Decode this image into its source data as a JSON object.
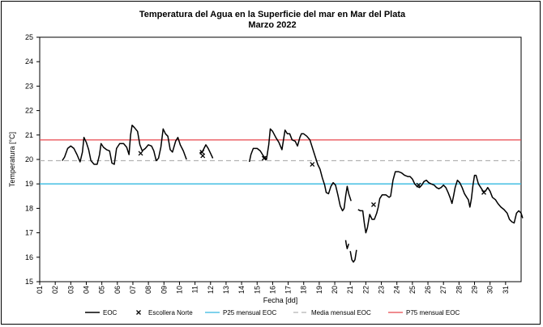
{
  "chart_data": {
    "type": "line",
    "title": "Temperatura del Agua en la Superficie del mar en Mar del Plata",
    "subtitle": "Marzo 2022",
    "xlabel": "Fecha [dd]",
    "ylabel": "Temperatura [°C]",
    "ylim": [
      15,
      25
    ],
    "xlim": [
      1,
      32
    ],
    "yticks": [
      "15",
      "16",
      "17",
      "18",
      "19",
      "20",
      "21",
      "22",
      "23",
      "24",
      "25"
    ],
    "xticks": [
      "01",
      "02",
      "03",
      "04",
      "05",
      "06",
      "07",
      "08",
      "09",
      "10",
      "11",
      "12",
      "13",
      "14",
      "15",
      "16",
      "17",
      "18",
      "19",
      "20",
      "21",
      "22",
      "23",
      "24",
      "25",
      "26",
      "27",
      "28",
      "29",
      "30",
      "31"
    ],
    "grid": false,
    "legend_position": "bottom",
    "legend": [
      "EOC",
      "Escollera Norte",
      "P25 mensual EOC",
      "Media mensual EOC",
      "P75 mensual EOC"
    ],
    "colors": {
      "eoc": "#000000",
      "escollera": "#000000",
      "p25": "#33b8e0",
      "media": "#b3b3b3",
      "p75": "#e8474c"
    },
    "series": [
      {
        "name": "EOC",
        "segments": [
          [
            [
              2.45,
              19.95
            ],
            [
              2.6,
              20.1
            ],
            [
              2.8,
              20.45
            ],
            [
              3.0,
              20.55
            ],
            [
              3.2,
              20.45
            ],
            [
              3.4,
              20.2
            ],
            [
              3.6,
              19.9
            ],
            [
              3.75,
              20.3
            ],
            [
              3.85,
              20.9
            ],
            [
              4.0,
              20.7
            ],
            [
              4.15,
              20.4
            ],
            [
              4.3,
              19.95
            ],
            [
              4.5,
              19.8
            ],
            [
              4.7,
              19.8
            ],
            [
              4.85,
              20.2
            ],
            [
              4.95,
              20.65
            ],
            [
              5.1,
              20.5
            ],
            [
              5.3,
              20.4
            ],
            [
              5.5,
              20.35
            ],
            [
              5.65,
              19.85
            ],
            [
              5.8,
              19.8
            ],
            [
              5.95,
              20.45
            ],
            [
              6.15,
              20.65
            ],
            [
              6.4,
              20.65
            ],
            [
              6.6,
              20.5
            ],
            [
              6.75,
              20.2
            ],
            [
              6.85,
              21.0
            ],
            [
              6.95,
              21.4
            ],
            [
              7.1,
              21.3
            ],
            [
              7.3,
              21.15
            ],
            [
              7.45,
              20.6
            ],
            [
              7.6,
              20.35
            ],
            [
              7.8,
              20.45
            ],
            [
              8.0,
              20.6
            ],
            [
              8.2,
              20.55
            ],
            [
              8.35,
              20.35
            ],
            [
              8.5,
              19.95
            ],
            [
              8.65,
              20.05
            ],
            [
              8.8,
              20.5
            ],
            [
              8.95,
              21.25
            ],
            [
              9.1,
              21.05
            ],
            [
              9.25,
              20.95
            ],
            [
              9.4,
              20.4
            ],
            [
              9.55,
              20.3
            ],
            [
              9.75,
              20.75
            ],
            [
              9.9,
              20.9
            ],
            [
              10.05,
              20.6
            ],
            [
              10.25,
              20.35
            ],
            [
              10.45,
              20.0
            ]
          ],
          [
            [
              11.3,
              20.25
            ],
            [
              11.5,
              20.35
            ],
            [
              11.7,
              20.6
            ],
            [
              11.85,
              20.45
            ],
            [
              12.0,
              20.25
            ],
            [
              12.15,
              20.05
            ]
          ],
          [
            [
              14.5,
              19.9
            ],
            [
              14.6,
              20.2
            ],
            [
              14.75,
              20.45
            ],
            [
              15.0,
              20.45
            ],
            [
              15.2,
              20.35
            ],
            [
              15.4,
              20.15
            ],
            [
              15.6,
              20.0
            ],
            [
              15.75,
              20.6
            ],
            [
              15.85,
              21.25
            ],
            [
              16.0,
              21.15
            ],
            [
              16.2,
              20.9
            ],
            [
              16.4,
              20.7
            ],
            [
              16.6,
              20.4
            ],
            [
              16.7,
              20.8
            ],
            [
              16.8,
              21.2
            ],
            [
              16.95,
              21.05
            ],
            [
              17.1,
              21.05
            ],
            [
              17.25,
              20.8
            ],
            [
              17.45,
              20.75
            ],
            [
              17.6,
              20.55
            ],
            [
              17.75,
              20.9
            ],
            [
              17.85,
              21.05
            ],
            [
              18.0,
              21.05
            ],
            [
              18.2,
              20.95
            ],
            [
              18.4,
              20.8
            ],
            [
              18.6,
              20.4
            ],
            [
              18.75,
              20.1
            ],
            [
              18.9,
              19.8
            ],
            [
              19.05,
              19.6
            ],
            [
              19.2,
              19.25
            ],
            [
              19.35,
              18.95
            ],
            [
              19.45,
              18.65
            ],
            [
              19.6,
              18.6
            ],
            [
              19.75,
              18.9
            ],
            [
              19.9,
              19.05
            ],
            [
              20.05,
              18.95
            ],
            [
              20.2,
              18.55
            ],
            [
              20.35,
              18.1
            ],
            [
              20.5,
              17.9
            ],
            [
              20.6,
              18.0
            ],
            [
              20.7,
              18.5
            ],
            [
              20.8,
              18.9
            ],
            [
              20.9,
              18.6
            ],
            [
              21.05,
              18.3
            ]
          ],
          [
            [
              20.7,
              16.7
            ],
            [
              20.75,
              16.5
            ],
            [
              20.8,
              16.35
            ],
            [
              20.9,
              16.55
            ]
          ],
          [
            [
              21.0,
              16.25
            ],
            [
              21.1,
              15.9
            ],
            [
              21.2,
              15.8
            ],
            [
              21.3,
              15.9
            ],
            [
              21.4,
              16.3
            ]
          ],
          [
            [
              21.5,
              17.95
            ],
            [
              21.65,
              17.9
            ],
            [
              21.8,
              17.9
            ],
            [
              21.9,
              17.4
            ],
            [
              22.0,
              17.0
            ],
            [
              22.1,
              17.2
            ],
            [
              22.25,
              17.75
            ],
            [
              22.4,
              17.55
            ],
            [
              22.55,
              17.55
            ],
            [
              22.7,
              17.8
            ],
            [
              22.8,
              18.05
            ],
            [
              22.9,
              18.4
            ],
            [
              23.05,
              18.55
            ],
            [
              23.3,
              18.55
            ],
            [
              23.5,
              18.45
            ],
            [
              23.6,
              18.5
            ],
            [
              23.75,
              19.15
            ],
            [
              23.9,
              19.5
            ],
            [
              24.1,
              19.5
            ],
            [
              24.3,
              19.45
            ],
            [
              24.5,
              19.35
            ],
            [
              24.7,
              19.3
            ],
            [
              24.85,
              19.3
            ],
            [
              25.0,
              19.2
            ],
            [
              25.15,
              19.0
            ],
            [
              25.3,
              18.9
            ],
            [
              25.45,
              18.85
            ],
            [
              25.6,
              18.95
            ],
            [
              25.75,
              19.1
            ],
            [
              25.9,
              19.15
            ],
            [
              26.05,
              19.05
            ],
            [
              26.2,
              19.0
            ],
            [
              26.4,
              18.95
            ],
            [
              26.55,
              18.85
            ],
            [
              26.7,
              18.8
            ],
            [
              26.85,
              18.85
            ],
            [
              27.0,
              18.95
            ],
            [
              27.15,
              18.85
            ],
            [
              27.3,
              18.65
            ],
            [
              27.45,
              18.4
            ],
            [
              27.55,
              18.2
            ],
            [
              27.65,
              18.5
            ],
            [
              27.75,
              18.85
            ],
            [
              27.9,
              19.15
            ],
            [
              28.05,
              19.05
            ],
            [
              28.2,
              18.85
            ],
            [
              28.35,
              18.6
            ],
            [
              28.5,
              18.45
            ],
            [
              28.6,
              18.35
            ],
            [
              28.7,
              18.05
            ],
            [
              28.8,
              18.4
            ],
            [
              28.9,
              18.95
            ],
            [
              29.0,
              19.35
            ],
            [
              29.1,
              19.35
            ],
            [
              29.25,
              19.0
            ],
            [
              29.4,
              18.85
            ],
            [
              29.55,
              18.7
            ],
            [
              29.7,
              18.7
            ],
            [
              29.85,
              18.85
            ],
            [
              30.0,
              18.7
            ],
            [
              30.15,
              18.45
            ],
            [
              30.35,
              18.35
            ],
            [
              30.5,
              18.2
            ],
            [
              30.7,
              18.05
            ],
            [
              30.9,
              17.95
            ],
            [
              31.1,
              17.8
            ],
            [
              31.25,
              17.55
            ],
            [
              31.4,
              17.45
            ],
            [
              31.55,
              17.4
            ],
            [
              31.7,
              17.8
            ],
            [
              31.85,
              17.9
            ],
            [
              32.0,
              17.8
            ],
            [
              32.1,
              17.6
            ]
          ]
        ]
      },
      {
        "name": "Escollera Norte",
        "points": [
          [
            7.5,
            20.25
          ],
          [
            11.45,
            20.3
          ],
          [
            11.5,
            20.15
          ],
          [
            15.45,
            20.05
          ],
          [
            18.55,
            19.8
          ],
          [
            22.5,
            18.15
          ],
          [
            25.4,
            18.95
          ],
          [
            29.6,
            18.65
          ]
        ]
      },
      {
        "name": "P25 mensual EOC",
        "value": 19.0
      },
      {
        "name": "Media mensual EOC",
        "value": 19.95
      },
      {
        "name": "P75 mensual EOC",
        "value": 20.8
      }
    ]
  }
}
